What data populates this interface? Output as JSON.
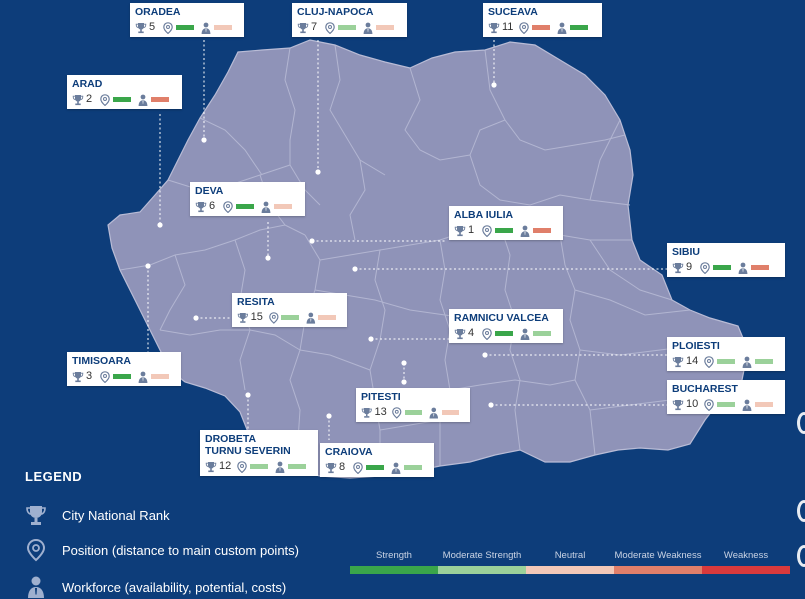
{
  "colors": {
    "background": "#0d3d7a",
    "map_fill": "#8f93b8",
    "map_border": "#b9bcd6",
    "strength": "#3aa64a",
    "moderate_strength": "#9bd19a",
    "neutral": "#f2c8b8",
    "moderate_weakness": "#e07f6a",
    "weakness": "#d93a3c"
  },
  "cities": [
    {
      "name": "ORADEA",
      "rank": "5",
      "position": "strength",
      "workforce": "neutral"
    },
    {
      "name": "CLUJ-NAPOCA",
      "rank": "7",
      "position": "moderate_strength",
      "workforce": "neutral"
    },
    {
      "name": "SUCEAVA",
      "rank": "11",
      "position": "moderate_weakness",
      "workforce": "strength"
    },
    {
      "name": "ARAD",
      "rank": "2",
      "position": "strength",
      "workforce": "moderate_weakness"
    },
    {
      "name": "DEVA",
      "rank": "6",
      "position": "strength",
      "workforce": "neutral"
    },
    {
      "name": "ALBA IULIA",
      "rank": "1",
      "position": "strength",
      "workforce": "moderate_weakness"
    },
    {
      "name": "SIBIU",
      "rank": "9",
      "position": "strength",
      "workforce": "moderate_weakness"
    },
    {
      "name": "RESITA",
      "rank": "15",
      "position": "moderate_strength",
      "workforce": "neutral"
    },
    {
      "name": "RAMNICU VALCEA",
      "rank": "4",
      "position": "strength",
      "workforce": "moderate_strength"
    },
    {
      "name": "PLOIESTI",
      "rank": "14",
      "position": "moderate_strength",
      "workforce": "moderate_strength"
    },
    {
      "name": "TIMISOARA",
      "rank": "3",
      "position": "strength",
      "workforce": "neutral"
    },
    {
      "name": "PITESTI",
      "rank": "13",
      "position": "moderate_strength",
      "workforce": "neutral"
    },
    {
      "name": "BUCHAREST",
      "rank": "10",
      "position": "moderate_strength",
      "workforce": "neutral"
    },
    {
      "name": "DROBETA\nTURNU SEVERIN",
      "rank": "12",
      "position": "moderate_strength",
      "workforce": "moderate_strength"
    },
    {
      "name": "CRAIOVA",
      "rank": "8",
      "position": "strength",
      "workforce": "moderate_strength"
    }
  ],
  "legend": {
    "title": "LEGEND",
    "items": [
      {
        "icon": "trophy-icon",
        "label": "City National Rank"
      },
      {
        "icon": "location-pin-icon",
        "label": "Position (distance to main custom points)"
      },
      {
        "icon": "person-icon",
        "label": "Workforce (availability, potential, costs)"
      }
    ]
  },
  "scale": [
    {
      "key": "strength",
      "label": "Strength"
    },
    {
      "key": "moderate_strength",
      "label": "Moderate Strength"
    },
    {
      "key": "neutral",
      "label": "Neutral"
    },
    {
      "key": "moderate_weakness",
      "label": "Moderate Weakness"
    },
    {
      "key": "weakness",
      "label": "Weakness"
    }
  ]
}
